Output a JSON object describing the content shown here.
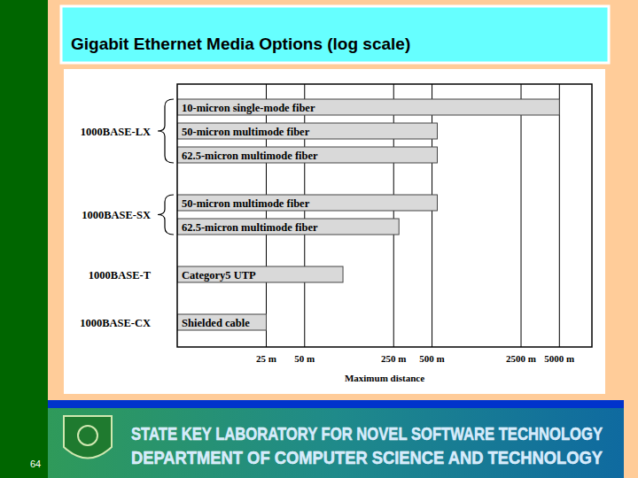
{
  "chart_data": {
    "type": "bar",
    "orientation": "horizontal",
    "log": "x",
    "grid": true,
    "title": "Gigabit Ethernet Media Options (log scale)",
    "x_label": "Maximum distance",
    "categories": [
      "10-micron single-mode fiber",
      "50-micron multimode fiber",
      "62.5-micron multimode fiber",
      "50-micron multimode fiber",
      "62.5-micron multimode fiber",
      "Category5 UTP",
      "Shielded cable"
    ],
    "groups": [
      "1000BASE-LX",
      "1000BASE-LX",
      "1000BASE-LX",
      "1000BASE-SX",
      "1000BASE-SX",
      "1000BASE-T",
      "1000BASE-CX"
    ],
    "values": [
      5000,
      550,
      550,
      550,
      275,
      100,
      25
    ],
    "color": "#d9d9d9",
    "xlim": [
      5,
      9000
    ],
    "xticks": [
      {
        "value": 25,
        "label": "25 m"
      },
      {
        "value": 50,
        "label": "50 m"
      },
      {
        "value": 250,
        "label": "250 m"
      },
      {
        "value": 500,
        "label": "500 m"
      },
      {
        "value": 2500,
        "label": "2500 m"
      },
      {
        "value": 5000,
        "label": "5000 m"
      }
    ]
  },
  "slide": {
    "page_number": 64,
    "footer": [
      "STATE KEY LABORATORY FOR NOVEL SOFTWARE TECHNOLOGY",
      "DEPARTMENT OF COMPUTER SCIENCE AND TECHNOLOGY"
    ]
  }
}
